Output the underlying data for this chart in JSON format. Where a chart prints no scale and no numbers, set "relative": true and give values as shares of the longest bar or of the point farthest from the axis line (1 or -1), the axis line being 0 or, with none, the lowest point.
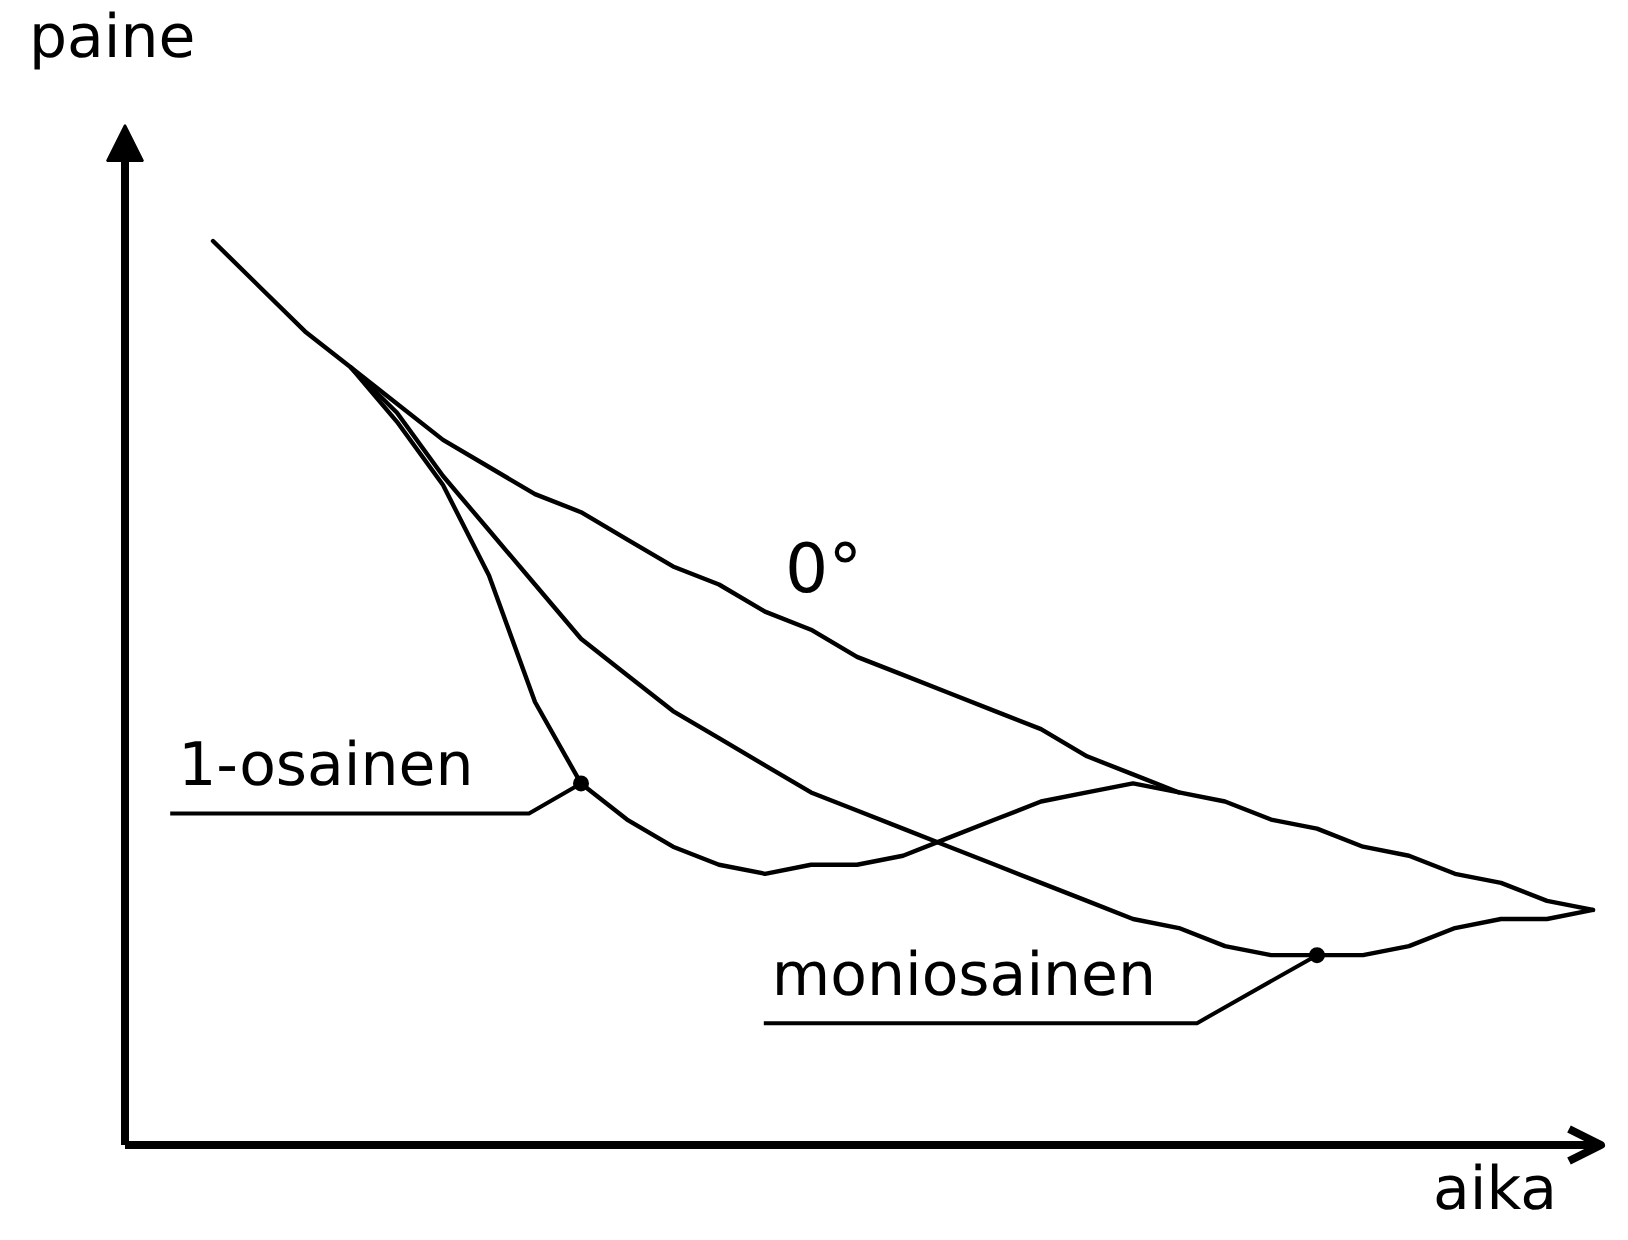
{
  "chart_data": {
    "type": "line",
    "xlabel": "aika",
    "ylabel": "paine",
    "relative": true,
    "grid": false,
    "categories": [
      null,
      null,
      null,
      null,
      null,
      null,
      null,
      null,
      null,
      null,
      null,
      null,
      null,
      null,
      null,
      null,
      null,
      null,
      null,
      null,
      null,
      null,
      null,
      null,
      null,
      null,
      null,
      null,
      null,
      null,
      null
    ],
    "series": [
      {
        "name": "0°",
        "color": "#000000",
        "values": [
          1,
          0.95,
          0.9,
          0.86,
          0.82,
          0.78,
          0.75,
          0.72,
          0.7,
          0.67,
          0.64,
          0.62,
          0.59,
          0.57,
          0.54,
          0.52,
          0.5,
          0.48,
          0.46,
          0.43,
          0.41,
          0.39,
          0.38,
          0.36,
          0.35,
          0.33,
          0.32,
          0.3,
          0.29,
          0.27,
          0.26
        ]
      },
      {
        "name": "1-osainen",
        "color": "#000000",
        "values": [
          null,
          null,
          null,
          0.86,
          0.8,
          0.73,
          0.63,
          0.49,
          0.4,
          0.36,
          0.33,
          0.31,
          0.3,
          0.31,
          0.31,
          0.32,
          0.34,
          0.36,
          0.38,
          0.39,
          0.4,
          0.39,
          null,
          null,
          null,
          null,
          null,
          null,
          null,
          null,
          null
        ]
      },
      {
        "name": "moniosainen",
        "color": "#000000",
        "values": [
          null,
          null,
          null,
          0.86,
          0.81,
          0.74,
          0.68,
          0.62,
          0.56,
          0.52,
          0.48,
          0.45,
          0.42,
          0.39,
          0.37,
          0.35,
          0.33,
          0.31,
          0.29,
          0.27,
          0.25,
          0.24,
          0.22,
          0.21,
          0.21,
          0.21,
          0.22,
          0.24,
          0.25,
          0.25,
          0.26
        ]
      }
    ]
  }
}
